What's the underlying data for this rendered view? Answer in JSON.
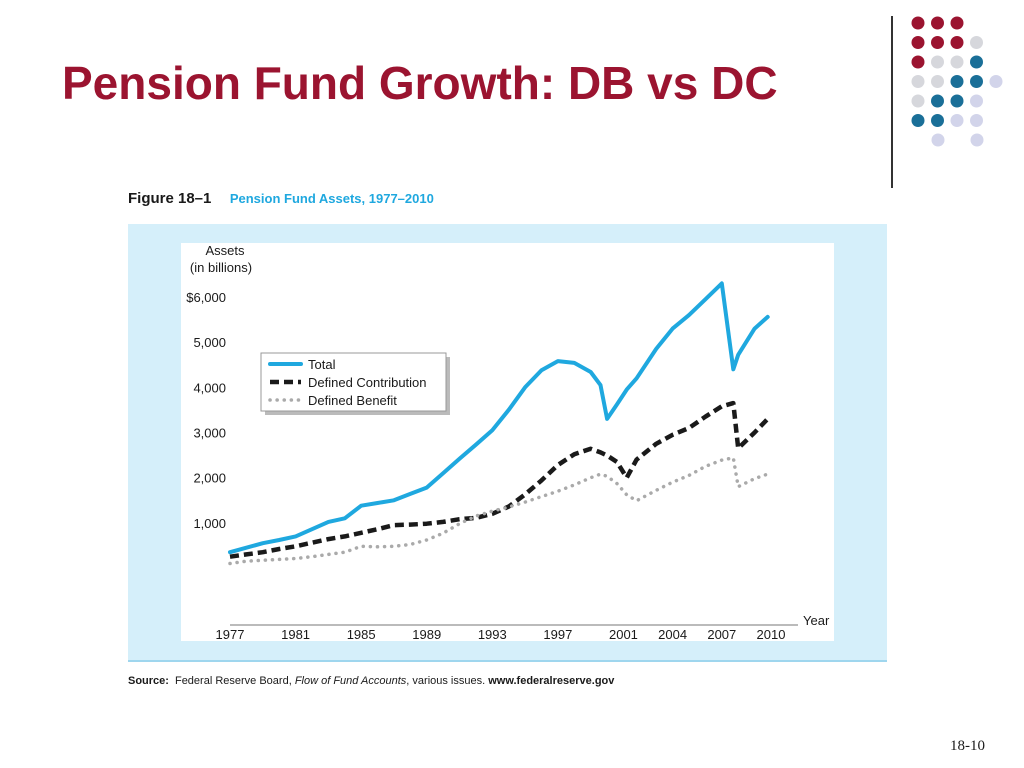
{
  "slide": {
    "title": "Pension Fund Growth: DB vs DC",
    "page_number": "18-10",
    "colors": {
      "title": "#9b1430",
      "accent_red": "#9b1430",
      "accent_blue": "#1a6f98",
      "accent_gray": "#d6d7dc",
      "accent_lavender": "#d2d4ea"
    }
  },
  "decor": {
    "dot_grid": [
      [
        "red",
        "red",
        "red"
      ],
      [
        "red",
        "red",
        "red",
        "gray"
      ],
      [
        "red",
        "gray",
        "gray",
        "blue"
      ],
      [
        "gray",
        "gray",
        "blue",
        "blue",
        "lavender"
      ],
      [
        "gray",
        "blue",
        "blue",
        "lavender"
      ],
      [
        "blue",
        "blue",
        "lavender",
        "lavender"
      ],
      [
        "lavender",
        "lavender"
      ]
    ]
  },
  "figure": {
    "label": "Figure 18–1",
    "caption": "Pension Fund Assets, 1977–2010"
  },
  "source": {
    "label": "Source:",
    "text_1": "Federal Reserve Board, ",
    "publication": "Flow of Fund Accounts",
    "text_2": ", various issues. ",
    "url": "www.federalreserve.gov"
  },
  "chart_data": {
    "type": "line",
    "ylabel_line1": "Assets",
    "ylabel_line2": "(in billions)",
    "xlabel": "Year",
    "xlim": [
      1977,
      2010
    ],
    "ylim": [
      0,
      6000
    ],
    "x_ticks": [
      "1977",
      "1981",
      "1985",
      "1989",
      "1993",
      "1997",
      "2001",
      "2004",
      "2007",
      "2010"
    ],
    "y_ticks": [
      "$6,000",
      "5,000",
      "4,000",
      "3,000",
      "2,000",
      "1,000"
    ],
    "grid": false,
    "legend_position": "top-left",
    "series": [
      {
        "name": "Total",
        "color": "#1fa8df",
        "style": "solid",
        "x": [
          1977,
          1978,
          1979,
          1980,
          1981,
          1982,
          1983,
          1984,
          1985,
          1986,
          1987,
          1988,
          1989,
          1990,
          1991,
          1992,
          1993,
          1994,
          1995,
          1996,
          1997,
          1998,
          1999,
          1999.6,
          2000,
          2000.6,
          2001.2,
          2001.8,
          2003,
          2004,
          2005,
          2006,
          2007,
          2007.7,
          2008,
          2009,
          2009.8
        ],
        "values": [
          350,
          450,
          550,
          620,
          700,
          860,
          1020,
          1100,
          1380,
          1440,
          1500,
          1640,
          1780,
          2100,
          2420,
          2730,
          3050,
          3500,
          4000,
          4380,
          4580,
          4540,
          4340,
          4050,
          3300,
          3620,
          3950,
          4200,
          4850,
          5300,
          5600,
          5950,
          6300,
          4400,
          4720,
          5300,
          5560
        ]
      },
      {
        "name": "Defined Contribution",
        "color": "#1a1a1a",
        "style": "dashed",
        "x": [
          1977,
          1978,
          1979,
          1980,
          1981,
          1982,
          1983,
          1984,
          1985,
          1986,
          1987,
          1988,
          1989,
          1990,
          1991,
          1992,
          1993,
          1994,
          1995,
          1996,
          1997,
          1998,
          1999,
          1999.6,
          2000,
          2000.6,
          2001.2,
          2001.8,
          2003,
          2004,
          2005,
          2006,
          2007,
          2007.7,
          2008,
          2009,
          2009.8
        ],
        "values": [
          250,
          300,
          350,
          420,
          480,
          560,
          640,
          700,
          780,
          860,
          950,
          960,
          980,
          1020,
          1080,
          1110,
          1200,
          1360,
          1630,
          1940,
          2280,
          2520,
          2640,
          2560,
          2490,
          2350,
          2000,
          2400,
          2750,
          2950,
          3100,
          3350,
          3580,
          3650,
          2650,
          3000,
          3300
        ]
      },
      {
        "name": "Defined Benefit",
        "color": "#aaaaaa",
        "style": "dotted",
        "x": [
          1977,
          1978,
          1979,
          1980,
          1981,
          1982,
          1983,
          1984,
          1985,
          1986,
          1987,
          1988,
          1989,
          1990,
          1991,
          1992,
          1993,
          1994,
          1995,
          1996,
          1997,
          1998,
          1999,
          1999.6,
          2000,
          2000.6,
          2001.2,
          2001.8,
          2003,
          2004,
          2005,
          2006,
          2007,
          2007.7,
          2008,
          2009,
          2009.8
        ],
        "values": [
          100,
          150,
          170,
          190,
          210,
          250,
          300,
          350,
          480,
          470,
          480,
          520,
          620,
          770,
          980,
          1150,
          1260,
          1350,
          1460,
          1580,
          1700,
          1840,
          2000,
          2080,
          2030,
          1870,
          1620,
          1490,
          1720,
          1900,
          2050,
          2250,
          2390,
          2440,
          1800,
          1980,
          2080
        ]
      }
    ]
  }
}
